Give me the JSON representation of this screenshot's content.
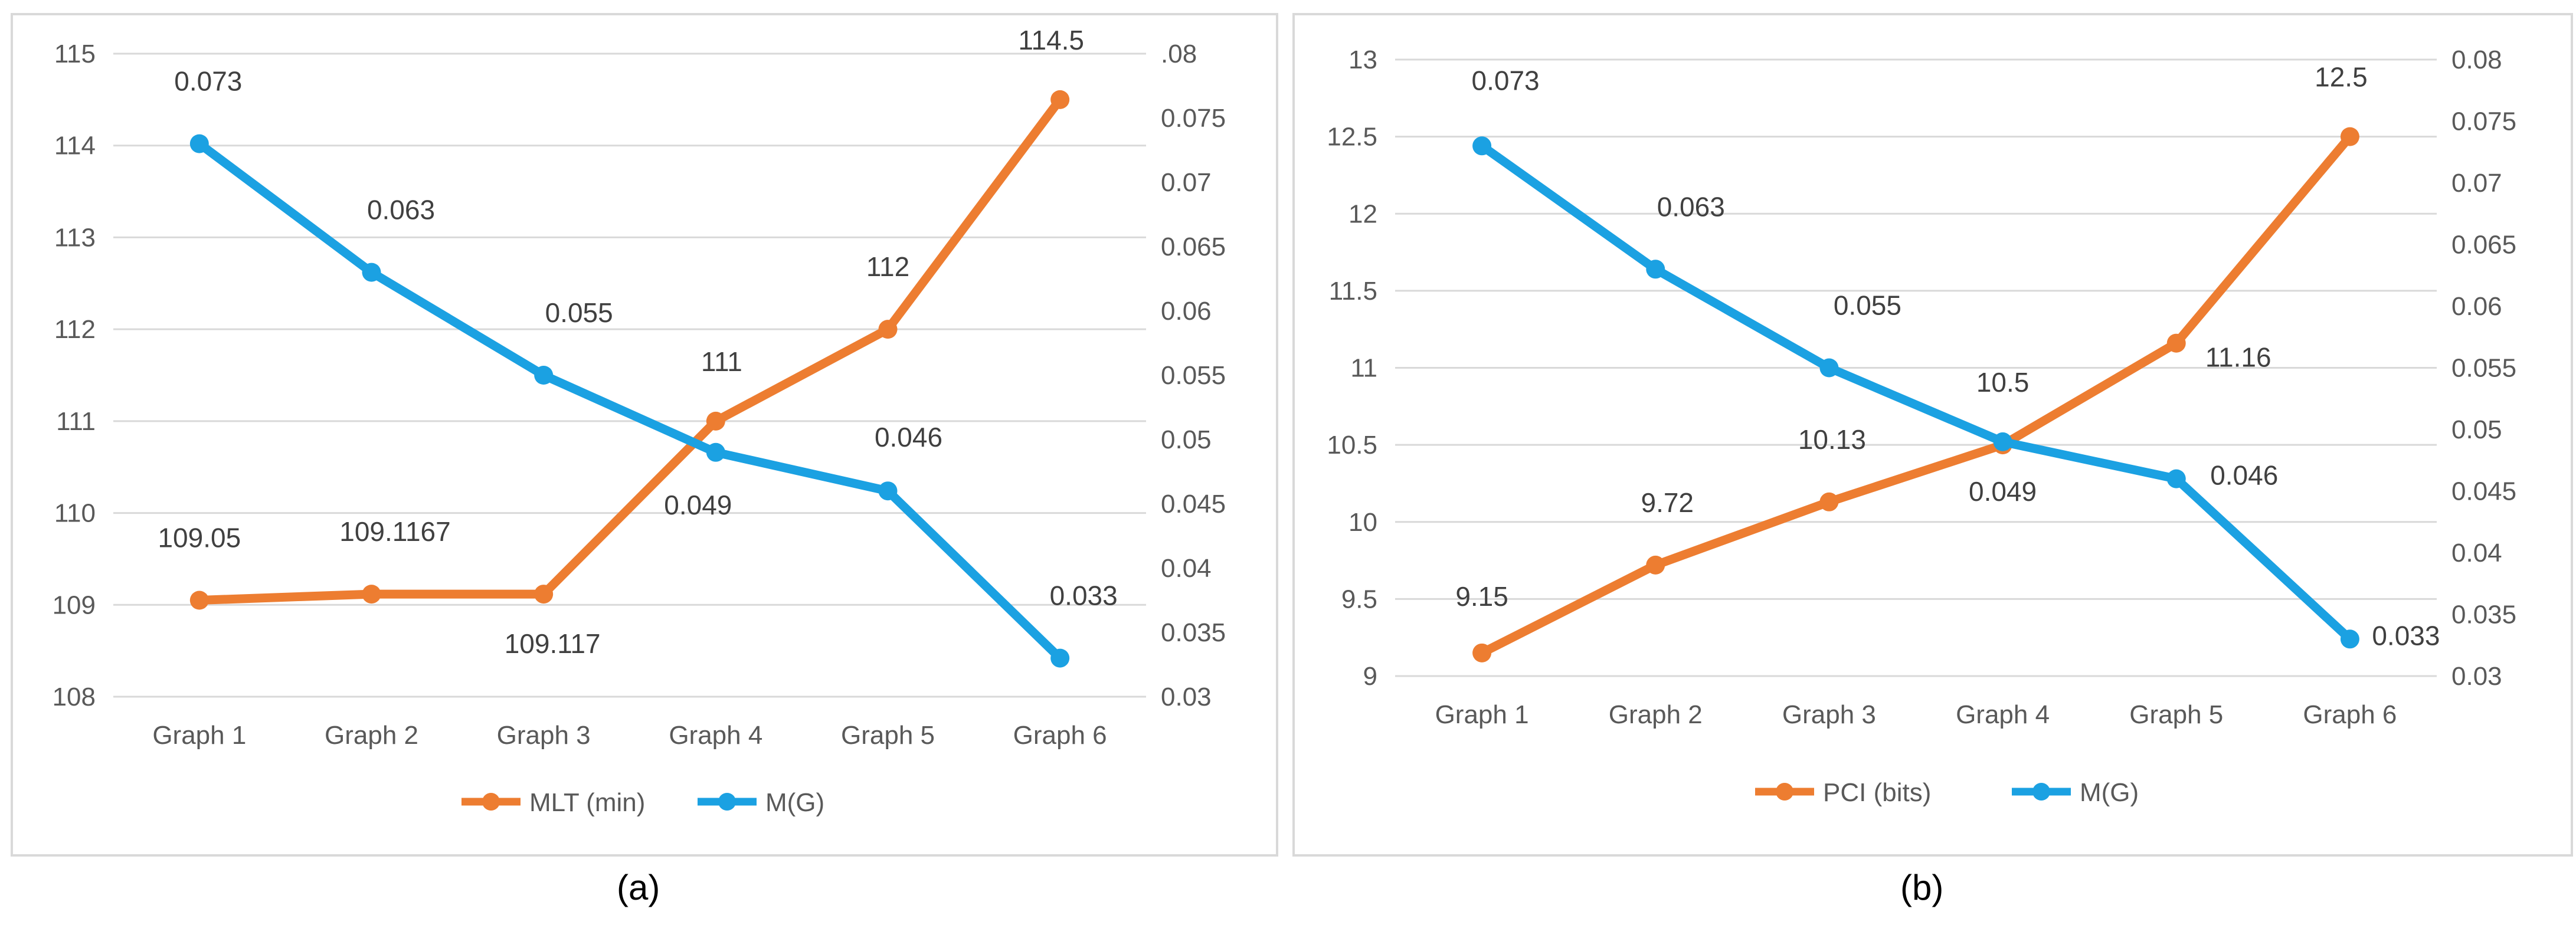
{
  "chart_data": [
    {
      "type": "line",
      "caption": "(a)",
      "categories": [
        "Graph 1",
        "Graph 2",
        "Graph 3",
        "Graph 4",
        "Graph 5",
        "Graph 6"
      ],
      "y_left": {
        "min": 108,
        "max": 115,
        "step": 1,
        "tick_labels": [
          "108",
          "109",
          "110",
          "111",
          "112",
          "113",
          "114",
          "115"
        ]
      },
      "y_right": {
        "min": 0.03,
        "max": 0.08,
        "step": 0.005,
        "tick_labels": [
          "0.03",
          "0.035",
          "0.04",
          "0.045",
          "0.05",
          "0.055",
          "0.06",
          "0.065",
          "0.07",
          "0.075",
          ".08"
        ]
      },
      "series": [
        {
          "name": "MLT (min)",
          "axis": "left",
          "color": "#ED7D31",
          "values": [
            109.05,
            109.1167,
            109.117,
            111,
            112,
            114.5
          ],
          "labels": [
            "109.05",
            "109.1167",
            "109.117",
            "111",
            "112",
            "114.5"
          ]
        },
        {
          "name": "M(G)",
          "axis": "right",
          "color": "#1BA1E2",
          "values": [
            0.073,
            0.063,
            0.055,
            0.049,
            0.046,
            0.033
          ],
          "labels": [
            "0.073",
            "0.063",
            "0.055",
            "0.049",
            "0.046",
            "0.033"
          ]
        }
      ],
      "grid": true,
      "legend": "bottom"
    },
    {
      "type": "line",
      "caption": "(b)",
      "categories": [
        "Graph 1",
        "Graph 2",
        "Graph 3",
        "Graph 4",
        "Graph 5",
        "Graph 6"
      ],
      "y_left": {
        "min": 9,
        "max": 13,
        "step": 0.5,
        "tick_labels": [
          "9",
          "9.5",
          "10",
          "10.5",
          "11",
          "11.5",
          "12",
          "12.5",
          "13"
        ]
      },
      "y_right": {
        "min": 0.03,
        "max": 0.08,
        "step": 0.005,
        "tick_labels": [
          "0.03",
          "0.035",
          "0.04",
          "0.045",
          "0.05",
          "0.055",
          "0.06",
          "0.065",
          "0.07",
          "0.075",
          "0.08"
        ]
      },
      "series": [
        {
          "name": "PCI (bits)",
          "axis": "left",
          "color": "#ED7D31",
          "values": [
            9.15,
            9.72,
            10.13,
            10.5,
            11.16,
            12.5
          ],
          "labels": [
            "9.15",
            "9.72",
            "10.13",
            "10.5",
            "11.16",
            "12.5"
          ]
        },
        {
          "name": "M(G)",
          "axis": "right",
          "color": "#1BA1E2",
          "values": [
            0.073,
            0.063,
            0.055,
            0.049,
            0.046,
            0.033
          ],
          "labels": [
            "0.073",
            "0.063",
            "0.055",
            "0.049",
            "0.046",
            "0.033"
          ]
        }
      ],
      "grid": true,
      "legend": "bottom"
    }
  ]
}
